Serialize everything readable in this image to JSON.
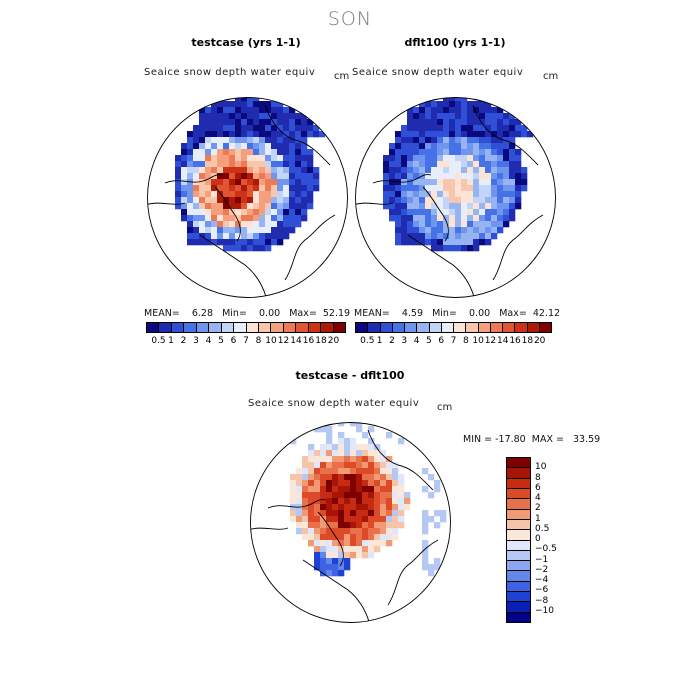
{
  "season": "SON",
  "panels": [
    {
      "title": "testcase (yrs 1-1)",
      "var": "Seaice snow depth water equiv",
      "unit": "cm",
      "mean_label": "MEAN=",
      "mean": "6.28",
      "min_label": "Min=",
      "min": "0.00",
      "max_label": "Max=",
      "max": "52.19"
    },
    {
      "title": "dflt100 (yrs 1-1)",
      "var": "Seaice snow depth water equiv",
      "unit": "cm",
      "mean_label": "MEAN=",
      "mean": "4.59",
      "min_label": "Min=",
      "min": "0.00",
      "max_label": "Max=",
      "max": "42.12"
    }
  ],
  "diff": {
    "title": "testcase - dflt100",
    "var": "Seaice snow depth water equiv",
    "unit": "cm",
    "minmax": "MIN = -17.80  MAX =   33.59"
  },
  "chart_data": [
    {
      "type": "heatmap",
      "title": "testcase (yrs 1-1)",
      "subtitle": "Seaice snow depth water equiv",
      "units": "cm",
      "projection": "north polar stereographic",
      "stats": {
        "mean": 6.28,
        "min": 0.0,
        "max": 52.19
      },
      "levels": [
        0.5,
        1,
        2,
        3,
        4,
        5,
        6,
        7,
        8,
        10,
        12,
        14,
        16,
        18,
        20
      ],
      "colors": [
        "#0a0a7e",
        "#1f2cb0",
        "#2f4fd6",
        "#4672e8",
        "#6f95ee",
        "#97b4f2",
        "#c3d5f6",
        "#e8eef9",
        "#fbe4d6",
        "#f8c6ad",
        "#f4a07e",
        "#ec7a55",
        "#e05533",
        "#cc3316",
        "#ad1a08",
        "#800000"
      ]
    },
    {
      "type": "heatmap",
      "title": "dflt100 (yrs 1-1)",
      "subtitle": "Seaice snow depth water equiv",
      "units": "cm",
      "projection": "north polar stereographic",
      "stats": {
        "mean": 4.59,
        "min": 0.0,
        "max": 42.12
      },
      "levels": [
        0.5,
        1,
        2,
        3,
        4,
        5,
        6,
        7,
        8,
        10,
        12,
        14,
        16,
        18,
        20
      ],
      "colors": [
        "#0a0a7e",
        "#1f2cb0",
        "#2f4fd6",
        "#4672e8",
        "#6f95ee",
        "#97b4f2",
        "#c3d5f6",
        "#e8eef9",
        "#fbe4d6",
        "#f8c6ad",
        "#f4a07e",
        "#ec7a55",
        "#e05533",
        "#cc3316",
        "#ad1a08",
        "#800000"
      ]
    },
    {
      "type": "heatmap",
      "title": "testcase - dflt100",
      "subtitle": "Seaice snow depth water equiv",
      "units": "cm",
      "projection": "north polar stereographic",
      "stats": {
        "min": -17.8,
        "max": 33.59
      },
      "levels": [
        -10,
        -8,
        -6,
        -4,
        -2,
        -1,
        -0.5,
        0,
        0.5,
        1,
        2,
        4,
        6,
        8,
        10
      ],
      "colors": [
        "#00008b",
        "#0b1fb5",
        "#1f42d6",
        "#3d63e3",
        "#6286ea",
        "#8aa7ef",
        "#b5c8f4",
        "#dfe7f8",
        "#fbe7da",
        "#f6c4a9",
        "#f09a76",
        "#e8714b",
        "#dc4a28",
        "#c52c12",
        "#a71506",
        "#7f0000"
      ]
    }
  ]
}
